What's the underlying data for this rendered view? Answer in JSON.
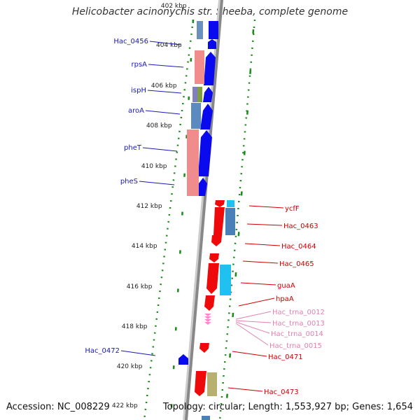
{
  "title": "Helicobacter acinonychis str. Sheeba, complete genome",
  "accession": "Accession: NC_008229",
  "summary": "Topology: circular; Length: 1,553,927 bp; Genes: 1,654",
  "colors": {
    "left_label": "#1a1ab4",
    "right_label": "#cc0000",
    "trna_label": "#e080b0",
    "tick_green": "#1a8a1a",
    "strand_blue": "#0a0aee",
    "strand_red": "#ee0a0a",
    "backbone": "#888888"
  },
  "kbp_ticks": [
    "402 kbp",
    "404 kbp",
    "406 kbp",
    "408 kbp",
    "410 kbp",
    "412 kbp",
    "414 kbp",
    "416 kbp",
    "418 kbp",
    "420 kbp",
    "422 kbp"
  ],
  "left_genes": [
    "Hac_0456",
    "rpsA",
    "ispH",
    "aroA",
    "pheT",
    "pheS",
    "Hac_0472"
  ],
  "right_genes": [
    "ycfF",
    "Hac_0463",
    "Hac_0464",
    "Hac_0465",
    "guaA",
    "hpaA",
    "Hac_0471",
    "Hac_0473"
  ],
  "trna_genes": [
    "Hac_trna_0012",
    "Hac_trna_0013",
    "Hac_trna_0014",
    "Hac_trna_0015"
  ]
}
